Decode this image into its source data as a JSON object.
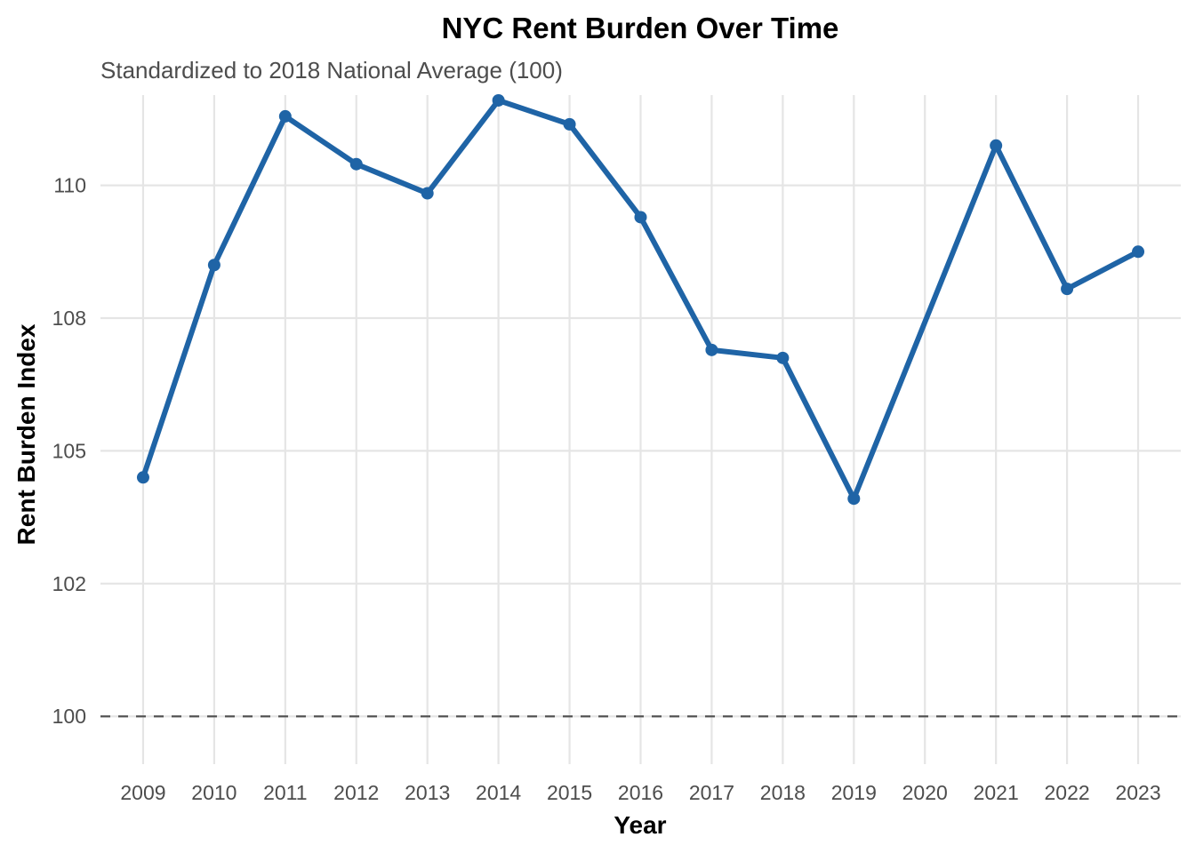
{
  "chart_data": {
    "type": "line",
    "title": "NYC Rent Burden Over Time",
    "subtitle": "Standardized to 2018 National Average (100)",
    "xlabel": "Year",
    "ylabel": "Rent Burden Index",
    "x": [
      2009,
      2010,
      2011,
      2012,
      2013,
      2014,
      2015,
      2016,
      2017,
      2018,
      2019,
      2020,
      2021,
      2022,
      2023
    ],
    "x_tick_labels": [
      "2009",
      "2010",
      "2011",
      "2012",
      "2013",
      "2014",
      "2015",
      "2016",
      "2017",
      "2018",
      "2019",
      "2020",
      "2021",
      "2022",
      "2023"
    ],
    "y_ticks": [
      100,
      102.5,
      105,
      107.5,
      110
    ],
    "y_tick_labels": [
      "100",
      "102",
      "105",
      "108",
      "110"
    ],
    "ylim": [
      99.1,
      111.7
    ],
    "series": [
      {
        "values": [
          104.5,
          108.5,
          111.3,
          110.4,
          109.85,
          111.6,
          111.15,
          109.4,
          106.9,
          106.75,
          104.1,
          null,
          110.75,
          108.05,
          108.75
        ]
      }
    ],
    "reference_line": {
      "y": 100,
      "style": "dashed"
    },
    "grid": true,
    "legend": "none",
    "colors": {
      "line": "#1f64a6",
      "grid": "#e5e5e5",
      "reference": "#555555",
      "title": "#000000",
      "subtitle": "#4d4d4d",
      "tick": "#4d4d4d"
    }
  }
}
